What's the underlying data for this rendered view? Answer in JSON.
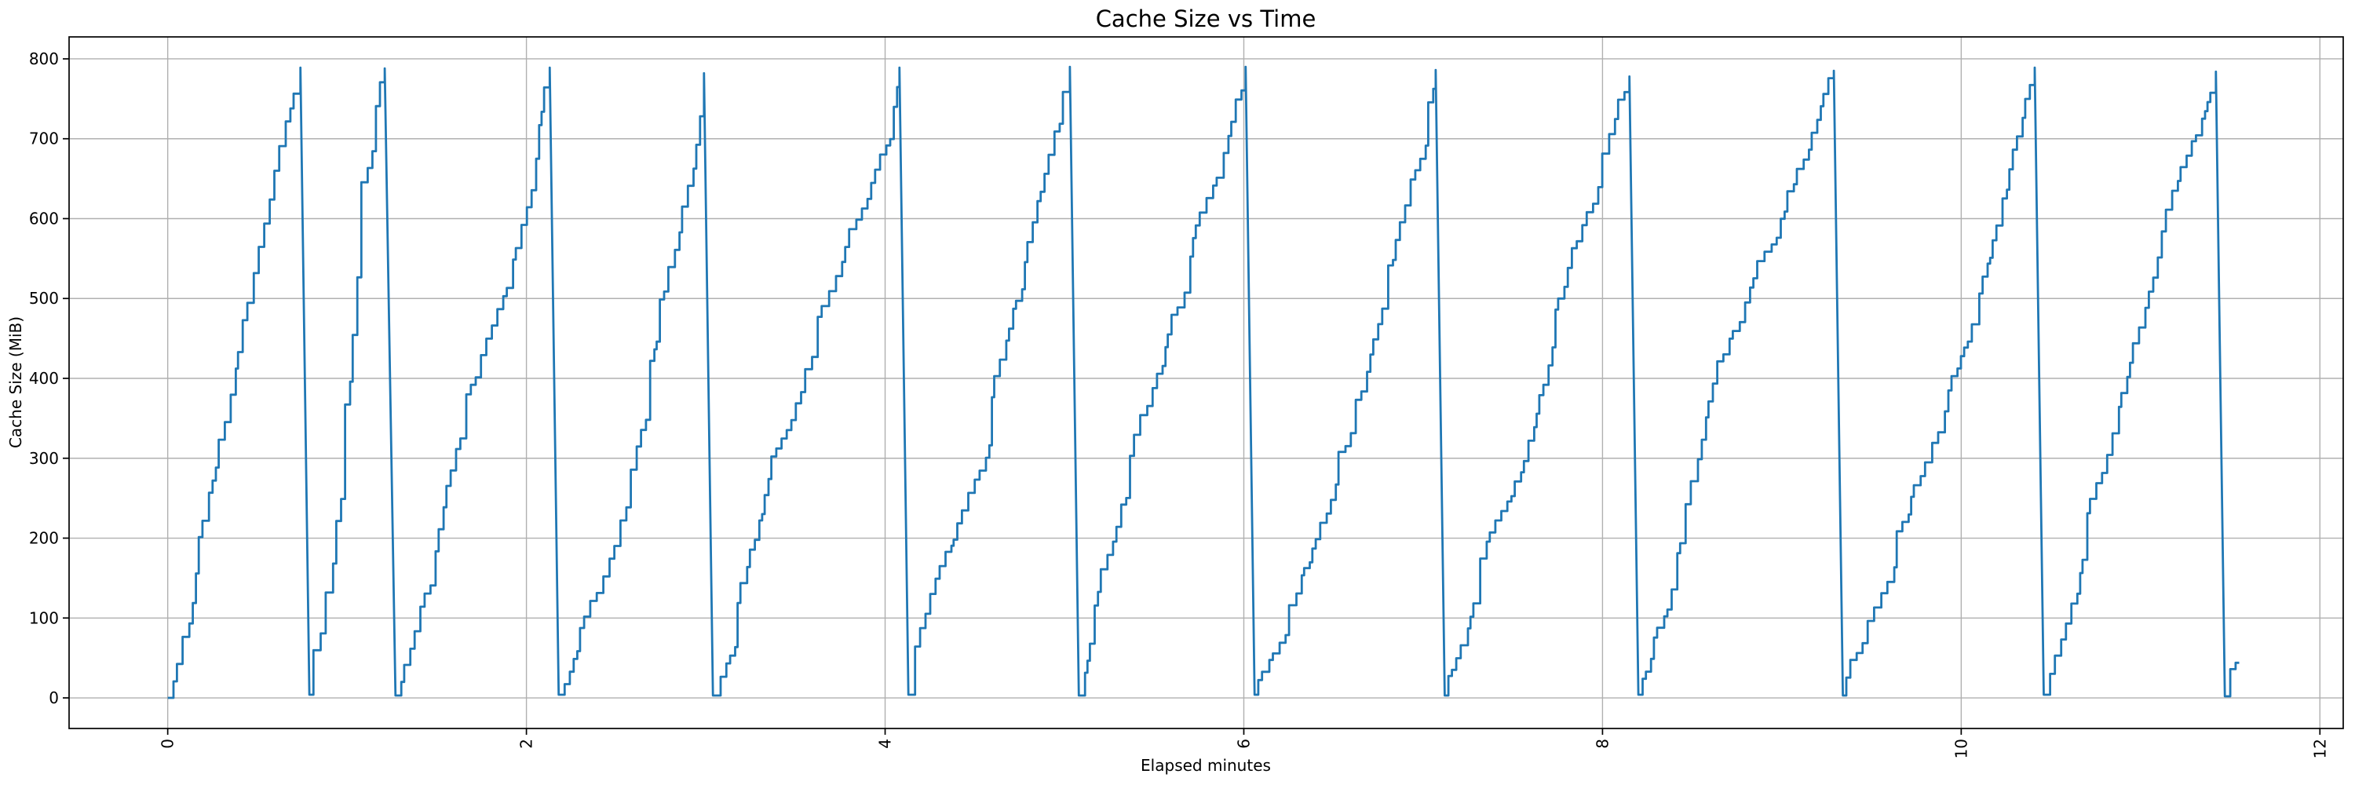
{
  "figure": {
    "title": "Cache Size vs Time",
    "x_label": "Elapsed minutes",
    "y_label": "Cache Size (MiB)",
    "background_color": "#ffffff",
    "line_color": "#1f77b4",
    "grid_color": "#b0b0b0",
    "spine_color": "#000000",
    "text_color": "#000000"
  },
  "chart_data": {
    "type": "line",
    "title": "Cache Size vs Time",
    "xlabel": "Elapsed minutes",
    "ylabel": "Cache Size (MiB)",
    "x_ticks": [
      0,
      2,
      4,
      6,
      8,
      10,
      12
    ],
    "y_ticks": [
      0,
      100,
      200,
      300,
      400,
      500,
      600,
      700,
      800
    ],
    "x_tick_rotation": 90,
    "xlim": [
      -0.55,
      12.13
    ],
    "ylim": [
      -38.3,
      827.5
    ],
    "grid": true,
    "legend": "none",
    "shape": "staircase sawtooth: cache fills in small steps to ~790 MiB then is evicted to ~0",
    "cycles": [
      {
        "t_start": 0.0,
        "v_start": 0,
        "t_peak": 0.74,
        "v_peak": 789
      },
      {
        "t_start": 0.79,
        "v_start": 4,
        "t_peak": 1.21,
        "v_peak": 788
      },
      {
        "t_start": 1.27,
        "v_start": 3,
        "t_peak": 2.13,
        "v_peak": 789
      },
      {
        "t_start": 2.18,
        "v_start": 4,
        "t_peak": 2.99,
        "v_peak": 782
      },
      {
        "t_start": 3.04,
        "v_start": 3,
        "t_peak": 4.08,
        "v_peak": 789
      },
      {
        "t_start": 4.13,
        "v_start": 4,
        "t_peak": 5.03,
        "v_peak": 790
      },
      {
        "t_start": 5.08,
        "v_start": 3,
        "t_peak": 6.01,
        "v_peak": 790
      },
      {
        "t_start": 6.06,
        "v_start": 4,
        "t_peak": 7.07,
        "v_peak": 786
      },
      {
        "t_start": 7.12,
        "v_start": 3,
        "t_peak": 8.15,
        "v_peak": 778
      },
      {
        "t_start": 8.2,
        "v_start": 4,
        "t_peak": 9.29,
        "v_peak": 785
      },
      {
        "t_start": 9.34,
        "v_start": 3,
        "t_peak": 10.41,
        "v_peak": 789
      },
      {
        "t_start": 10.46,
        "v_start": 4,
        "t_peak": 11.42,
        "v_peak": 784
      }
    ],
    "tail": {
      "t_drop_end": 11.47,
      "v_drop_end": 2,
      "steps": [
        [
          11.5,
          36
        ],
        [
          11.53,
          44
        ]
      ],
      "t_end": 11.55
    }
  }
}
